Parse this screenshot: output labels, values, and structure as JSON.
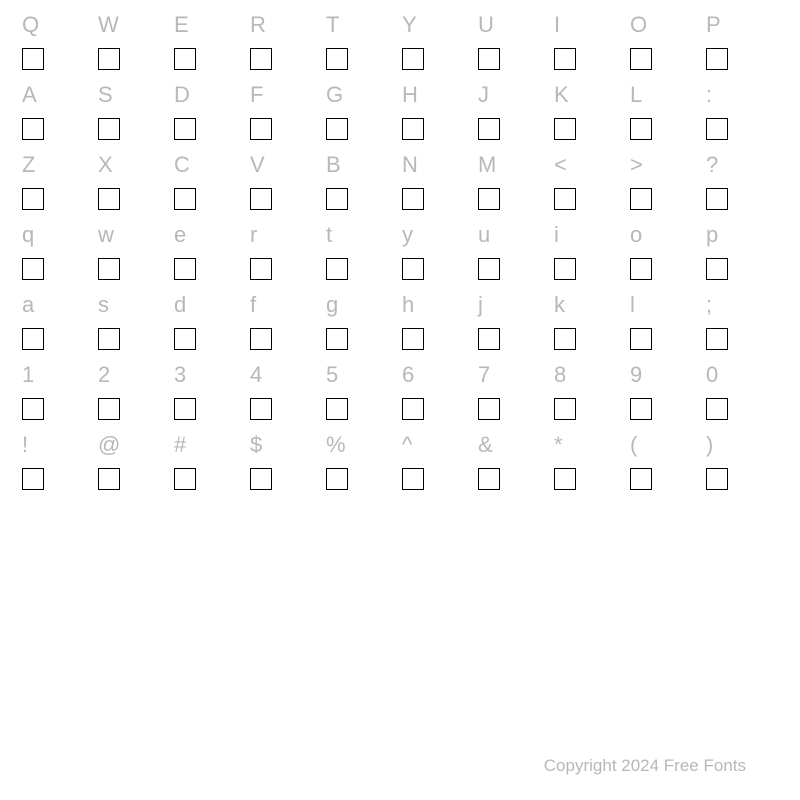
{
  "rows": [
    [
      "Q",
      "W",
      "E",
      "R",
      "T",
      "Y",
      "U",
      "I",
      "O",
      "P"
    ],
    [
      "A",
      "S",
      "D",
      "F",
      "G",
      "H",
      "J",
      "K",
      "L",
      ":"
    ],
    [
      "Z",
      "X",
      "C",
      "V",
      "B",
      "N",
      "M",
      "<",
      ">",
      "?"
    ],
    [
      "q",
      "w",
      "e",
      "r",
      "t",
      "y",
      "u",
      "i",
      "o",
      "p"
    ],
    [
      "a",
      "s",
      "d",
      "f",
      "g",
      "h",
      "j",
      "k",
      "l",
      ";"
    ],
    [
      "1",
      "2",
      "3",
      "4",
      "5",
      "6",
      "7",
      "8",
      "9",
      "0"
    ],
    [
      "!",
      "@",
      "#",
      "$",
      "%",
      "^",
      "&",
      "*",
      "(",
      ")"
    ]
  ],
  "footer_text": "Copyright 2024 Free Fonts",
  "label_color": "#b8b8b8",
  "box_border_color": "#000000",
  "background_color": "#ffffff",
  "label_fontsize": 22,
  "footer_fontsize": 17,
  "box_size": 22,
  "box_border_width": 1.5,
  "columns": 10,
  "row_count": 7
}
